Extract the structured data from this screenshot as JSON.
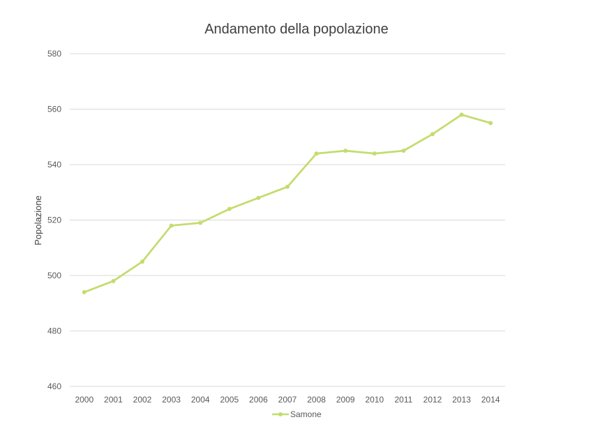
{
  "chart_data": {
    "type": "line",
    "title": "Andamento della popolazione",
    "xlabel": "",
    "ylabel": "Popolazione",
    "categories": [
      "2000",
      "2001",
      "2002",
      "2003",
      "2004",
      "2005",
      "2006",
      "2007",
      "2008",
      "2009",
      "2010",
      "2011",
      "2012",
      "2013",
      "2014"
    ],
    "series": [
      {
        "name": "Samone",
        "color": "#c4dc6f",
        "values": [
          494,
          498,
          505,
          518,
          519,
          524,
          528,
          532,
          544,
          545,
          544,
          545,
          551,
          558,
          555
        ]
      }
    ],
    "ylim": [
      460,
      580
    ],
    "yticks": [
      "460",
      "480",
      "500",
      "520",
      "540",
      "560",
      "580"
    ],
    "grid": true,
    "legend": "bottom"
  }
}
